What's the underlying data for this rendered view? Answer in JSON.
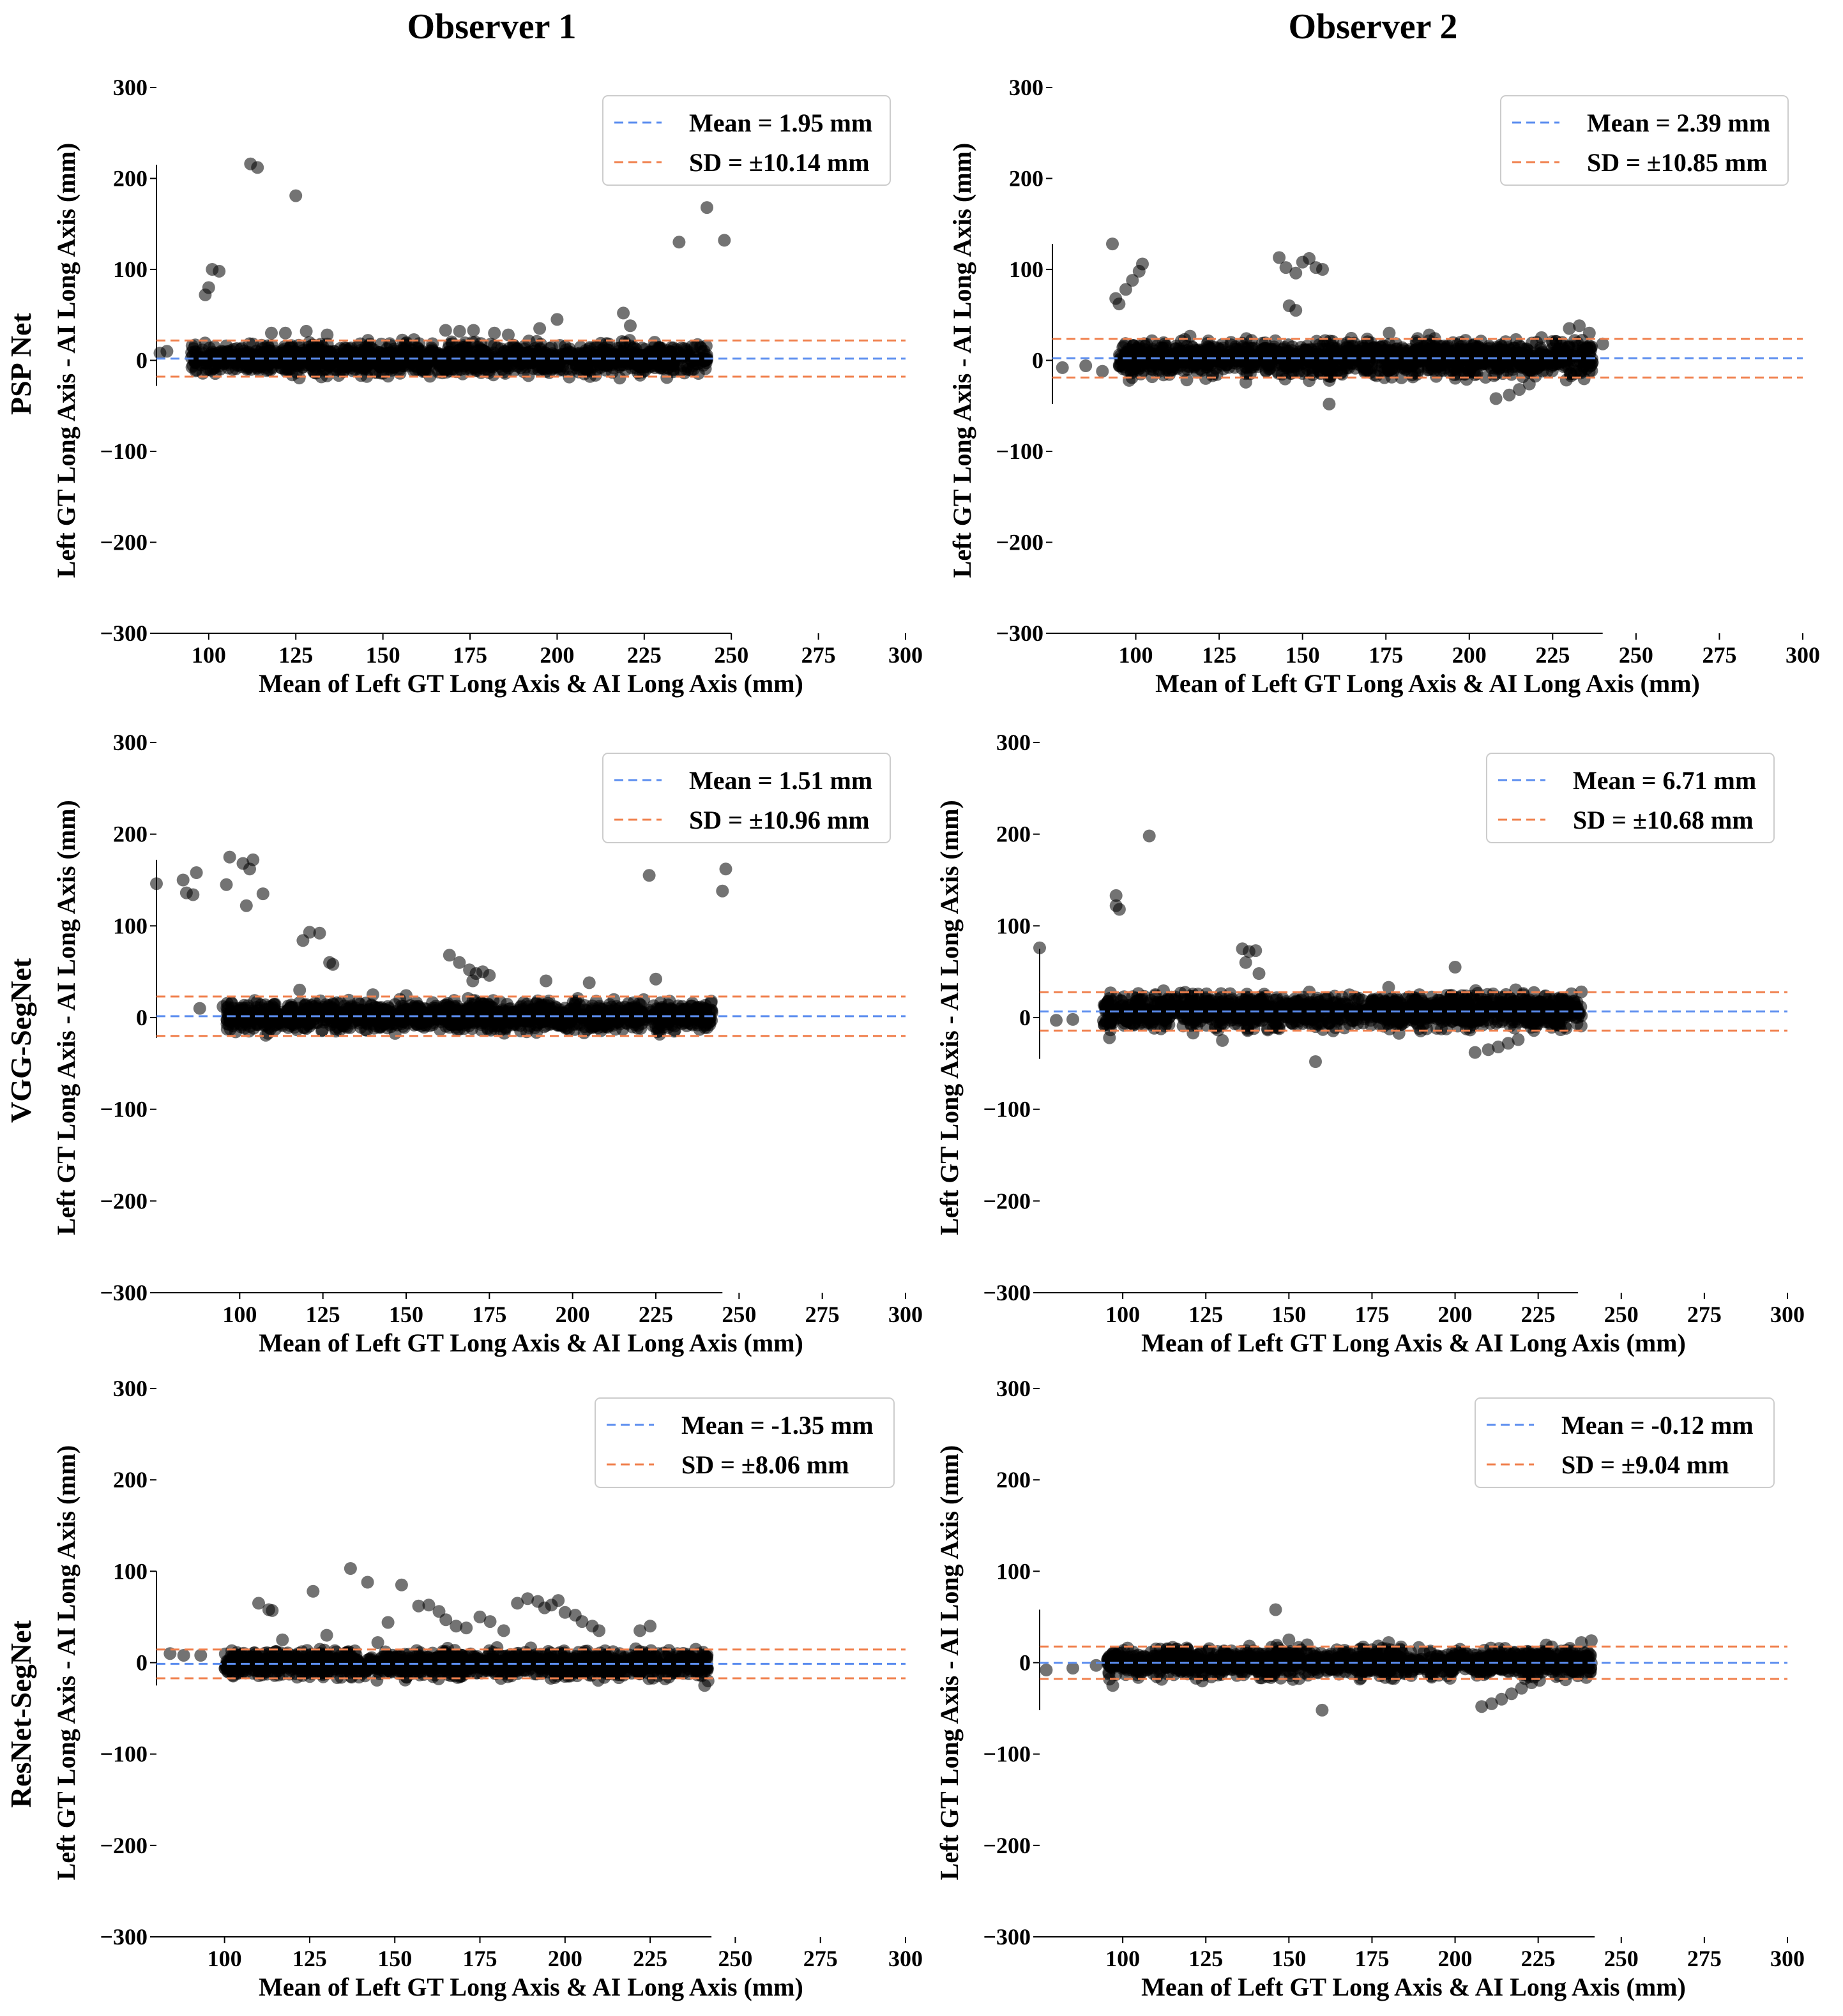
{
  "figure": {
    "column_titles": [
      "Observer 1",
      "Observer 2"
    ],
    "row_labels": [
      "PSP Net",
      "VGG-SegNet",
      "ResNet-SegNet"
    ]
  },
  "colors": {
    "mean_line": "#5b8def",
    "sd_line": "#f0804d",
    "points": "#000000"
  },
  "chart_data": [
    {
      "type": "scatter",
      "row": 0,
      "col": 0,
      "model": "PSP Net",
      "observer": "Observer 1",
      "xlabel": "Mean of Left GT Long Axis & AI Long Axis (mm)",
      "ylabel": "Left GT Long Axis - AI Long Axis (mm)",
      "xlim": [
        85,
        300
      ],
      "ylim": [
        -300,
        300
      ],
      "xticks": [
        100,
        125,
        150,
        175,
        200,
        225,
        250,
        275,
        300
      ],
      "yticks": [
        300,
        200,
        100,
        0,
        -100,
        -200,
        -300
      ],
      "spine_x": [
        85,
        250
      ],
      "spine_y": [
        -28,
        215
      ],
      "mean": 1.95,
      "upper": 21.83,
      "lower": -17.93,
      "legend": [
        "Mean = 1.95 mm",
        "SD = ±10.14 mm"
      ],
      "cluster": {
        "x_range": [
          95,
          243
        ],
        "y_spread": 12
      },
      "outliers": [
        [
          112,
          216
        ],
        [
          114,
          212
        ],
        [
          125,
          181
        ],
        [
          101,
          100
        ],
        [
          103,
          98
        ],
        [
          100,
          80
        ],
        [
          99,
          72
        ],
        [
          243,
          168
        ],
        [
          235,
          130
        ],
        [
          248,
          132
        ],
        [
          219,
          52
        ],
        [
          221,
          38
        ],
        [
          200,
          45
        ],
        [
          195,
          35
        ],
        [
          118,
          30
        ],
        [
          122,
          30
        ],
        [
          128,
          32
        ],
        [
          134,
          28
        ],
        [
          168,
          33
        ],
        [
          172,
          32
        ],
        [
          176,
          33
        ],
        [
          182,
          30
        ],
        [
          186,
          28
        ],
        [
          88,
          10
        ],
        [
          86,
          8
        ]
      ]
    },
    {
      "type": "scatter",
      "row": 0,
      "col": 1,
      "model": "PSP Net",
      "observer": "Observer 2",
      "xlabel": "Mean of Left GT Long Axis & AI Long Axis (mm)",
      "ylabel": "Left GT Long Axis - AI Long Axis (mm)",
      "xlim": [
        75,
        300
      ],
      "ylim": [
        -300,
        300
      ],
      "xticks": [
        100,
        125,
        150,
        175,
        200,
        225,
        250,
        275,
        300
      ],
      "yticks": [
        300,
        200,
        100,
        0,
        -100,
        -200,
        -300
      ],
      "spine_x": [
        75,
        240
      ],
      "spine_y": [
        -48,
        128
      ],
      "mean": 2.39,
      "upper": 23.66,
      "lower": -18.88,
      "legend": [
        "Mean = 2.39 mm",
        "SD = ±10.85 mm"
      ],
      "cluster": {
        "x_range": [
          95,
          237
        ],
        "y_spread": 13
      },
      "outliers": [
        [
          93,
          128
        ],
        [
          94,
          68
        ],
        [
          95,
          62
        ],
        [
          97,
          78
        ],
        [
          99,
          88
        ],
        [
          101,
          98
        ],
        [
          102,
          106
        ],
        [
          143,
          113
        ],
        [
          145,
          102
        ],
        [
          148,
          96
        ],
        [
          150,
          108
        ],
        [
          152,
          112
        ],
        [
          154,
          102
        ],
        [
          156,
          100
        ],
        [
          146,
          60
        ],
        [
          148,
          55
        ],
        [
          158,
          -48
        ],
        [
          208,
          -42
        ],
        [
          212,
          -38
        ],
        [
          215,
          -32
        ],
        [
          218,
          -26
        ],
        [
          230,
          35
        ],
        [
          233,
          38
        ],
        [
          236,
          30
        ],
        [
          78,
          -8
        ],
        [
          85,
          -6
        ],
        [
          90,
          -12
        ],
        [
          98,
          -22
        ],
        [
          240,
          18
        ],
        [
          133,
          -24
        ],
        [
          176,
          30
        ],
        [
          188,
          28
        ]
      ]
    },
    {
      "type": "scatter",
      "row": 1,
      "col": 0,
      "model": "VGG-SegNet",
      "observer": "Observer 1",
      "xlabel": "Mean of Left GT Long Axis & AI Long Axis (mm)",
      "ylabel": "Left GT Long Axis - AI Long Axis (mm)",
      "xlim": [
        75,
        300
      ],
      "ylim": [
        -300,
        300
      ],
      "xticks": [
        100,
        125,
        150,
        175,
        200,
        225,
        250,
        275,
        300
      ],
      "yticks": [
        300,
        200,
        100,
        0,
        -100,
        -200,
        -300
      ],
      "spine_x": [
        75,
        245
      ],
      "spine_y": [
        -22,
        172
      ],
      "mean": 1.51,
      "upper": 22.99,
      "lower": -19.97,
      "legend": [
        "Mean = 1.51 mm",
        "SD = ±10.96 mm"
      ],
      "cluster": {
        "x_range": [
          96,
          242
        ],
        "y_spread": 11
      },
      "outliers": [
        [
          75,
          146
        ],
        [
          83,
          150
        ],
        [
          87,
          158
        ],
        [
          84,
          136
        ],
        [
          86,
          134
        ],
        [
          97,
          175
        ],
        [
          101,
          168
        ],
        [
          103,
          162
        ],
        [
          104,
          172
        ],
        [
          107,
          135
        ],
        [
          96,
          145
        ],
        [
          102,
          122
        ],
        [
          121,
          93
        ],
        [
          124,
          92
        ],
        [
          119,
          84
        ],
        [
          127,
          60
        ],
        [
          128,
          58
        ],
        [
          163,
          68
        ],
        [
          166,
          60
        ],
        [
          169,
          52
        ],
        [
          171,
          48
        ],
        [
          173,
          50
        ],
        [
          175,
          46
        ],
        [
          170,
          40
        ],
        [
          223,
          155
        ],
        [
          225,
          42
        ],
        [
          246,
          162
        ],
        [
          245,
          138
        ],
        [
          192,
          40
        ],
        [
          205,
          38
        ],
        [
          88,
          10
        ],
        [
          95,
          12
        ],
        [
          118,
          30
        ],
        [
          140,
          25
        ],
        [
          150,
          24
        ]
      ]
    },
    {
      "type": "scatter",
      "row": 1,
      "col": 1,
      "model": "VGG-SegNet",
      "observer": "Observer 2",
      "xlabel": "Mean of Left GT Long Axis & AI Long Axis (mm)",
      "ylabel": "Left GT Long Axis - AI Long Axis (mm)",
      "xlim": [
        75,
        300
      ],
      "ylim": [
        -300,
        300
      ],
      "xticks": [
        100,
        125,
        150,
        175,
        200,
        225,
        250,
        275,
        300
      ],
      "yticks": [
        300,
        200,
        100,
        0,
        -100,
        -200,
        -300
      ],
      "spine_x": [
        75,
        237
      ],
      "spine_y": [
        -45,
        75
      ],
      "mean": 6.71,
      "upper": 27.64,
      "lower": -14.22,
      "legend": [
        "Mean = 6.71 mm",
        "SD = ±10.68 mm"
      ],
      "cluster": {
        "x_range": [
          94,
          238
        ],
        "y_spread": 13
      },
      "outliers": [
        [
          75,
          76
        ],
        [
          98,
          133
        ],
        [
          98,
          122
        ],
        [
          99,
          118
        ],
        [
          108,
          198
        ],
        [
          136,
          75
        ],
        [
          138,
          72
        ],
        [
          140,
          73
        ],
        [
          137,
          60
        ],
        [
          141,
          48
        ],
        [
          200,
          55
        ],
        [
          158,
          -48
        ],
        [
          206,
          -38
        ],
        [
          210,
          -35
        ],
        [
          213,
          -32
        ],
        [
          216,
          -28
        ],
        [
          219,
          -24
        ],
        [
          235,
          26
        ],
        [
          238,
          28
        ],
        [
          80,
          -3
        ],
        [
          85,
          -2
        ],
        [
          96,
          -22
        ],
        [
          130,
          -25
        ],
        [
          180,
          33
        ]
      ]
    },
    {
      "type": "scatter",
      "row": 2,
      "col": 0,
      "model": "ResNet-SegNet",
      "observer": "Observer 1",
      "xlabel": "Mean of Left GT Long Axis & AI Long Axis (mm)",
      "ylabel": "Left GT Long Axis - AI Long Axis (mm)",
      "xlim": [
        80,
        300
      ],
      "ylim": [
        -300,
        300
      ],
      "xticks": [
        100,
        125,
        150,
        175,
        200,
        225,
        250,
        275,
        300
      ],
      "yticks": [
        300,
        200,
        100,
        0,
        -100,
        -200,
        -300
      ],
      "spine_x": [
        80,
        243
      ],
      "spine_y": [
        -25,
        100
      ],
      "mean": -1.35,
      "upper": 14.45,
      "lower": -17.15,
      "legend": [
        "Mean = -1.35 mm",
        "SD = ±8.06 mm"
      ],
      "cluster": {
        "x_range": [
          100,
          242
        ],
        "y_spread": 10
      },
      "outliers": [
        [
          110,
          65
        ],
        [
          113,
          58
        ],
        [
          114,
          57
        ],
        [
          126,
          78
        ],
        [
          137,
          103
        ],
        [
          142,
          88
        ],
        [
          152,
          85
        ],
        [
          148,
          44
        ],
        [
          157,
          62
        ],
        [
          160,
          63
        ],
        [
          163,
          56
        ],
        [
          165,
          47
        ],
        [
          168,
          40
        ],
        [
          171,
          38
        ],
        [
          175,
          50
        ],
        [
          178,
          45
        ],
        [
          182,
          35
        ],
        [
          186,
          65
        ],
        [
          189,
          70
        ],
        [
          192,
          67
        ],
        [
          194,
          60
        ],
        [
          196,
          63
        ],
        [
          198,
          68
        ],
        [
          200,
          55
        ],
        [
          203,
          52
        ],
        [
          205,
          45
        ],
        [
          208,
          40
        ],
        [
          210,
          35
        ],
        [
          222,
          35
        ],
        [
          225,
          40
        ],
        [
          241,
          -25
        ],
        [
          242,
          -20
        ],
        [
          84,
          10
        ],
        [
          88,
          8
        ],
        [
          93,
          8
        ],
        [
          117,
          25
        ],
        [
          130,
          30
        ],
        [
          145,
          22
        ],
        [
          115,
          12
        ]
      ]
    },
    {
      "type": "scatter",
      "row": 2,
      "col": 1,
      "model": "ResNet-SegNet",
      "observer": "Observer 2",
      "xlabel": "Mean of Left GT Long Axis & AI Long Axis (mm)",
      "ylabel": "Left GT Long Axis - AI Long Axis (mm)",
      "xlim": [
        75,
        300
      ],
      "ylim": [
        -300,
        300
      ],
      "xticks": [
        100,
        125,
        150,
        175,
        200,
        225,
        250,
        275,
        300
      ],
      "yticks": [
        300,
        200,
        100,
        0,
        -100,
        -200,
        -300
      ],
      "spine_x": [
        75,
        242
      ],
      "spine_y": [
        -52,
        58
      ],
      "mean": -0.12,
      "upper": 17.6,
      "lower": -17.84,
      "legend": [
        "Mean = -0.12 mm",
        "SD = ±9.04 mm"
      ],
      "cluster": {
        "x_range": [
          95,
          241
        ],
        "y_spread": 11
      },
      "outliers": [
        [
          146,
          58
        ],
        [
          160,
          -52
        ],
        [
          208,
          -48
        ],
        [
          211,
          -45
        ],
        [
          214,
          -40
        ],
        [
          217,
          -34
        ],
        [
          220,
          -28
        ],
        [
          223,
          -22
        ],
        [
          77,
          -8
        ],
        [
          85,
          -6
        ],
        [
          92,
          -3
        ],
        [
          97,
          -25
        ],
        [
          238,
          22
        ],
        [
          241,
          24
        ],
        [
          110,
          15
        ],
        [
          150,
          25
        ],
        [
          180,
          22
        ]
      ]
    }
  ]
}
